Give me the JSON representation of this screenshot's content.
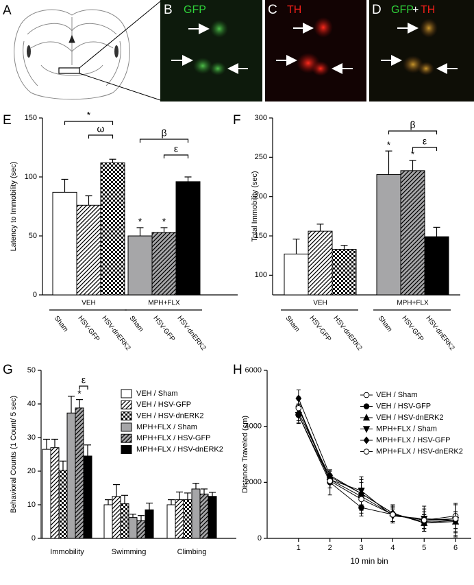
{
  "panel_labels": [
    "A",
    "B",
    "C",
    "D",
    "E",
    "F",
    "G",
    "H"
  ],
  "image_labels": {
    "b": [
      "GFP"
    ],
    "c": [
      "TH"
    ],
    "d": [
      "GFP",
      "+",
      "TH"
    ]
  },
  "chart_data": [
    {
      "type": "bar",
      "ylabel": "Latency to Immobility (sec)",
      "groups": [
        "VEH",
        "MPH+FLX"
      ],
      "categories": [
        "Sham",
        "HSV-GFP",
        "HSV-dnERK2",
        "Sham",
        "HSV-GFP",
        "HSV-dnERK2"
      ],
      "values": [
        87,
        76,
        112,
        50,
        53,
        96
      ],
      "errors": [
        11,
        8,
        3,
        7,
        4,
        4
      ],
      "colors": [
        "#ffffff",
        "#ffffff",
        "#ffffff",
        "#a6a6a8",
        "#a6a6a8",
        "#000000"
      ],
      "patterns": [
        "solid",
        "hatch",
        "check",
        "solid",
        "hatch",
        "solid"
      ],
      "ylim": [
        0,
        150
      ],
      "yticks": [
        0,
        50,
        100,
        150
      ],
      "annotations": [
        "*",
        "ω",
        "*",
        "*",
        "β",
        "ε"
      ]
    },
    {
      "type": "bar",
      "ylabel": "Total Immobility (sec)",
      "groups": [
        "VEH",
        "MPH+FLX"
      ],
      "categories": [
        "Sham",
        "HSV-GFP",
        "HSV-dnERK2",
        "Sham",
        "HSV-GFP",
        "HSV-dnERK2"
      ],
      "values": [
        127,
        156,
        133,
        228,
        233,
        149
      ],
      "errors": [
        19,
        9,
        5,
        30,
        13,
        12
      ],
      "colors": [
        "#ffffff",
        "#ffffff",
        "#ffffff",
        "#a6a6a8",
        "#a6a6a8",
        "#000000"
      ],
      "patterns": [
        "solid",
        "hatch",
        "check",
        "solid",
        "hatch",
        "solid"
      ],
      "ylim": [
        75,
        300
      ],
      "yticks": [
        100,
        150,
        200,
        250,
        300
      ],
      "annotations": [
        "*",
        "*",
        "β",
        "ε"
      ]
    },
    {
      "type": "bar",
      "ylabel": "Behavioral Counts (1 Count/ 5 sec)",
      "categories": [
        "Immobility",
        "Swimming",
        "Climbing"
      ],
      "series": [
        {
          "name": "VEH / Sham",
          "color": "#ffffff",
          "pattern": "solid",
          "values": [
            26.5,
            10,
            10
          ],
          "errors": [
            3,
            1.5,
            1.5
          ]
        },
        {
          "name": "VEH / HSV-GFP",
          "color": "#ffffff",
          "pattern": "hatch",
          "values": [
            27,
            12.5,
            11.5
          ],
          "errors": [
            2.5,
            3.5,
            2.3
          ]
        },
        {
          "name": "VEH / HSV-dnERK2",
          "color": "#ffffff",
          "pattern": "check",
          "values": [
            20.3,
            10.3,
            11.5
          ],
          "errors": [
            2.7,
            2.5,
            2
          ]
        },
        {
          "name": "MPH+FLX / Sham",
          "color": "#a6a6a8",
          "pattern": "solid",
          "values": [
            37.3,
            6.2,
            14.7
          ],
          "errors": [
            5,
            1,
            1.7
          ]
        },
        {
          "name": "MPH+FLX / HSV-GFP",
          "color": "#a6a6a8",
          "pattern": "hatch",
          "values": [
            38.8,
            5.3,
            13.2
          ],
          "errors": [
            2.5,
            1.5,
            1.5
          ]
        },
        {
          "name": "MPH+FLX / HSV-dnERK2",
          "color": "#000000",
          "pattern": "solid",
          "values": [
            24.5,
            8.5,
            12.5
          ],
          "errors": [
            3.3,
            2,
            1.2
          ]
        }
      ],
      "ylim": [
        0,
        50
      ],
      "yticks": [
        0,
        10,
        20,
        30,
        40,
        50
      ],
      "annotations": [
        "ε",
        "*"
      ]
    },
    {
      "type": "line",
      "ylabel": "Distance Traveled  (cm)",
      "xlabel": "10 min bin",
      "x": [
        1,
        2,
        3,
        4,
        5,
        6
      ],
      "series": [
        {
          "name": "VEH / Sham",
          "color": "#000000",
          "marker": "circle-open",
          "values": [
            4700,
            2100,
            1500,
            850,
            650,
            800
          ],
          "errors": [
            350,
            300,
            600,
            300,
            400,
            450
          ]
        },
        {
          "name": "VEH / HSV-GFP",
          "color": "#000000",
          "marker": "circle",
          "values": [
            4400,
            2000,
            1100,
            850,
            600,
            650
          ],
          "errors": [
            250,
            450,
            300,
            250,
            250,
            300
          ]
        },
        {
          "name": "VEH / HSV-dnERK2",
          "color": "#000000",
          "marker": "triangle-up",
          "values": [
            4500,
            2200,
            1600,
            900,
            550,
            600
          ],
          "errors": [
            300,
            250,
            500,
            300,
            200,
            350
          ]
        },
        {
          "name": "MPH+FLX / Sham",
          "color": "#000000",
          "marker": "triangle-down",
          "values": [
            4400,
            2100,
            1700,
            800,
            700,
            650
          ],
          "errors": [
            300,
            300,
            500,
            250,
            450,
            600
          ]
        },
        {
          "name": "MPH+FLX / HSV-GFP",
          "color": "#000000",
          "marker": "diamond",
          "values": [
            5000,
            2250,
            1600,
            900,
            550,
            650
          ],
          "errors": [
            300,
            200,
            400,
            300,
            300,
            550
          ]
        },
        {
          "name": "MPH+FLX / HSV-dnERK2",
          "color": "#000000",
          "marker": "circle-open",
          "values": [
            4650,
            2050,
            1400,
            850,
            650,
            700
          ],
          "errors": [
            300,
            250,
            400,
            300,
            300,
            500
          ]
        }
      ],
      "xlim": [
        0,
        6.5
      ],
      "xticks": [
        1,
        2,
        3,
        4,
        5,
        6
      ],
      "ylim": [
        0,
        6000
      ],
      "yticks": [
        0,
        2000,
        4000,
        6000
      ]
    }
  ]
}
